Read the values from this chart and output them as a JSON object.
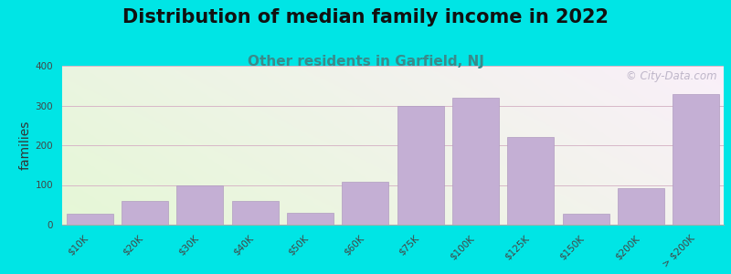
{
  "title": "Distribution of median family income in 2022",
  "subtitle": "Other residents in Garfield, NJ",
  "ylabel": "families",
  "categories": [
    "$10K",
    "$20K",
    "$30K",
    "$40K",
    "$50K",
    "$60K",
    "$75K",
    "$100K",
    "$125K",
    "$150K",
    "$200K",
    "> $200K"
  ],
  "values": [
    28,
    60,
    100,
    60,
    30,
    107,
    300,
    320,
    220,
    28,
    92,
    328
  ],
  "bar_color": "#c4afd4",
  "bar_edge_color": "#b09cc0",
  "title_fontsize": 15,
  "subtitle_fontsize": 11,
  "subtitle_color": "#3a8a8a",
  "ylabel_fontsize": 10,
  "tick_fontsize": 7.5,
  "ylim": [
    0,
    400
  ],
  "yticks": [
    0,
    100,
    200,
    300,
    400
  ],
  "background_outer": "#00e5e5",
  "grid_color": "#d8b8c8",
  "watermark_text": "© City-Data.com",
  "watermark_color": "#b8b0c4"
}
